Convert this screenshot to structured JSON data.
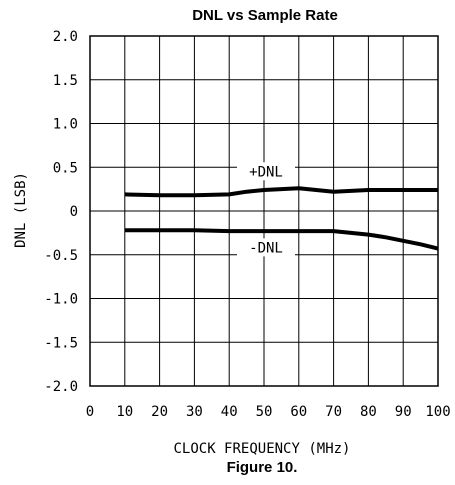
{
  "chart_data": {
    "type": "line",
    "title": "DNL vs Sample Rate",
    "xlabel": "CLOCK FREQUENCY (MHz)",
    "ylabel": "DNL (LSB)",
    "caption": "Figure 10.",
    "xlim": [
      0,
      100
    ],
    "ylim": [
      -2.0,
      2.0
    ],
    "x_ticks": [
      "0",
      "10",
      "20",
      "30",
      "40",
      "50",
      "60",
      "70",
      "80",
      "90",
      "100"
    ],
    "y_ticks": [
      "2.0",
      "1.5",
      "1.0",
      "0.5",
      "0",
      "-0.5",
      "-1.0",
      "-1.5",
      "-2.0"
    ],
    "grid": true,
    "series": [
      {
        "name": "+DNL",
        "x": [
          10,
          20,
          30,
          40,
          45,
          50,
          55,
          60,
          65,
          70,
          75,
          80,
          90,
          100
        ],
        "values": [
          0.19,
          0.18,
          0.18,
          0.19,
          0.22,
          0.24,
          0.25,
          0.26,
          0.24,
          0.22,
          0.23,
          0.24,
          0.24,
          0.24
        ]
      },
      {
        "name": "-DNL",
        "x": [
          10,
          20,
          30,
          40,
          50,
          60,
          70,
          75,
          80,
          85,
          90,
          95,
          100
        ],
        "values": [
          -0.22,
          -0.22,
          -0.22,
          -0.23,
          -0.23,
          -0.23,
          -0.23,
          -0.25,
          -0.27,
          -0.3,
          -0.34,
          -0.38,
          -0.43
        ]
      }
    ]
  }
}
